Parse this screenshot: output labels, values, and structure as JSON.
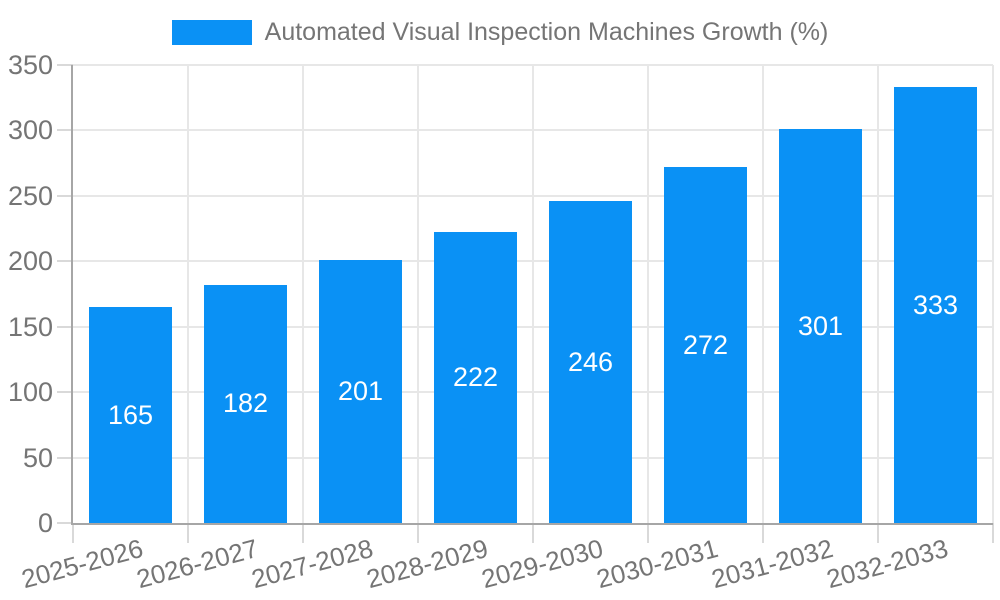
{
  "legend": {
    "label": "Automated Visual Inspection Machines Growth (%)"
  },
  "chart_data": {
    "type": "bar",
    "title": "Automated Visual Inspection Machines Growth (%)",
    "categories": [
      "2025-2026",
      "2026-2027",
      "2027-2028",
      "2028-2029",
      "2029-2030",
      "2030-2031",
      "2031-2032",
      "2032-2033"
    ],
    "values": [
      165,
      182,
      201,
      222,
      246,
      272,
      301,
      333
    ],
    "xlabel": "",
    "ylabel": "",
    "ylim": [
      0,
      350
    ],
    "ytick_step": 50,
    "yticks": [
      0,
      50,
      100,
      150,
      200,
      250,
      300,
      350
    ],
    "grid": true,
    "legend_position": "top",
    "x_label_rotation_deg": -15,
    "colors": {
      "bar": "#0a91f5",
      "value_label": "#ffffff",
      "grid": "#e7e7e7",
      "tick": "#d9d9d9",
      "axis": "#a6a6a6",
      "text": "#757575"
    }
  }
}
